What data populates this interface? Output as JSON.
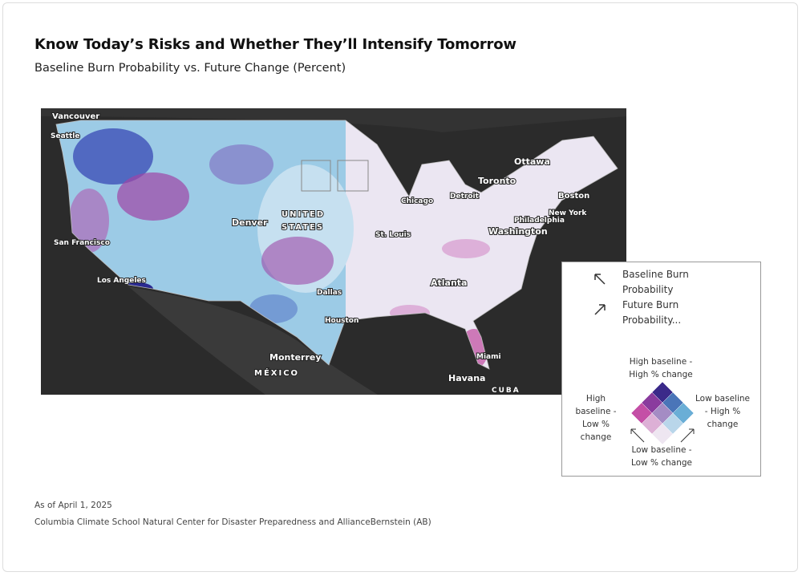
{
  "header": {
    "title": "Know Today’s Risks and Whether They’ll Intensify Tomorrow",
    "subtitle": "Baseline Burn Probability vs. Future Change (Percent)"
  },
  "map": {
    "labels": [
      "Vancouver",
      "Seattle",
      "Ottawa",
      "Toronto",
      "Boston",
      "New York",
      "Philadelphia",
      "Washington",
      "Detroit",
      "Chicago",
      "UNITED",
      "STATES",
      "Denver",
      "San Francisco",
      "Los Angeles",
      "St. Louis",
      "Dallas",
      "Houston",
      "Atlanta",
      "Monterrey",
      "MÉXICO",
      "Miami",
      "Havana",
      "CUBA"
    ]
  },
  "legend": {
    "items": [
      "Baseline Burn Probability",
      "Future Burn Probability..."
    ],
    "top": "High baseline - High % change",
    "left": "High baseline - Low % change",
    "right": "Low baseline - High % change",
    "bottom": "Low baseline - Low % change"
  },
  "footer": {
    "date": "As of April 1, 2025",
    "source": "Columbia Climate School Natural Center for Disaster Preparedness and AllianceBernstein (AB)"
  }
}
